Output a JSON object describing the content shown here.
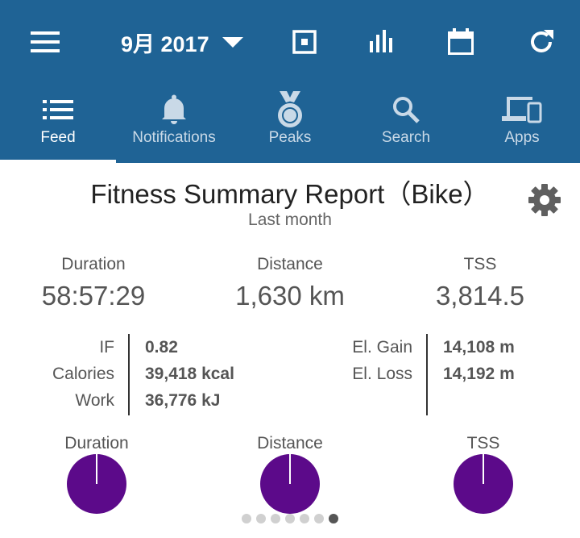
{
  "toolbar": {
    "month_label": "9月 2017",
    "icons": [
      "menu-icon",
      "target-square-icon",
      "bar-chart-icon",
      "calendar-icon",
      "refresh-icon"
    ]
  },
  "tabs": [
    {
      "label": "Feed",
      "icon": "feed-list-icon",
      "active": true
    },
    {
      "label": "Notifications",
      "icon": "bell-icon",
      "active": false
    },
    {
      "label": "Peaks",
      "icon": "medal-icon",
      "active": false
    },
    {
      "label": "Search",
      "icon": "search-icon",
      "active": false
    },
    {
      "label": "Apps",
      "icon": "devices-icon",
      "active": false
    }
  ],
  "report": {
    "title": "Fitness Summary Report（Bike）",
    "subtitle": "Last month",
    "stats": [
      {
        "label": "Duration",
        "value": "58:57:29"
      },
      {
        "label": "Distance",
        "value": "1,630 km"
      },
      {
        "label": "TSS",
        "value": "3,814.5"
      }
    ],
    "details_left": [
      {
        "label": "IF",
        "value": "0.82"
      },
      {
        "label": "Calories",
        "value": "39,418 kcal"
      },
      {
        "label": "Work",
        "value": "36,776 kJ"
      }
    ],
    "details_right": [
      {
        "label": "El. Gain",
        "value": "14,108 m"
      },
      {
        "label": "El. Loss",
        "value": "14,192 m"
      }
    ],
    "mini_charts": [
      {
        "label": "Duration"
      },
      {
        "label": "Distance"
      },
      {
        "label": "TSS"
      }
    ]
  },
  "pager": {
    "count": 7,
    "active_index": 6
  },
  "colors": {
    "appbar": "#1f6395",
    "pie": "#5c0a8a",
    "text": "#555555"
  }
}
